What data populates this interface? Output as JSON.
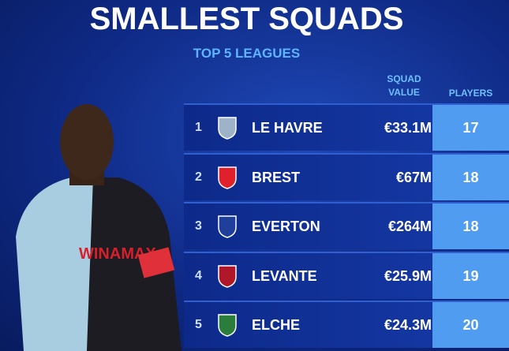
{
  "header": {
    "title": "SMALLEST SQUADS",
    "subtitle": "TOP 5 LEAGUES"
  },
  "table": {
    "columns": [
      "SQUAD VALUE",
      "PLAYERS"
    ],
    "rows": [
      {
        "rank": 1,
        "club": "LE HAVRE",
        "squad_value": "€33.1M",
        "players": 17
      },
      {
        "rank": 2,
        "club": "BREST",
        "squad_value": "€67M",
        "players": 18
      },
      {
        "rank": 3,
        "club": "EVERTON",
        "squad_value": "€264M",
        "players": 18
      },
      {
        "rank": 4,
        "club": "LEVANTE",
        "squad_value": "€25.9M",
        "players": 19
      },
      {
        "rank": 5,
        "club": "ELCHE",
        "squad_value": "€24.3M",
        "players": 20
      }
    ]
  }
}
